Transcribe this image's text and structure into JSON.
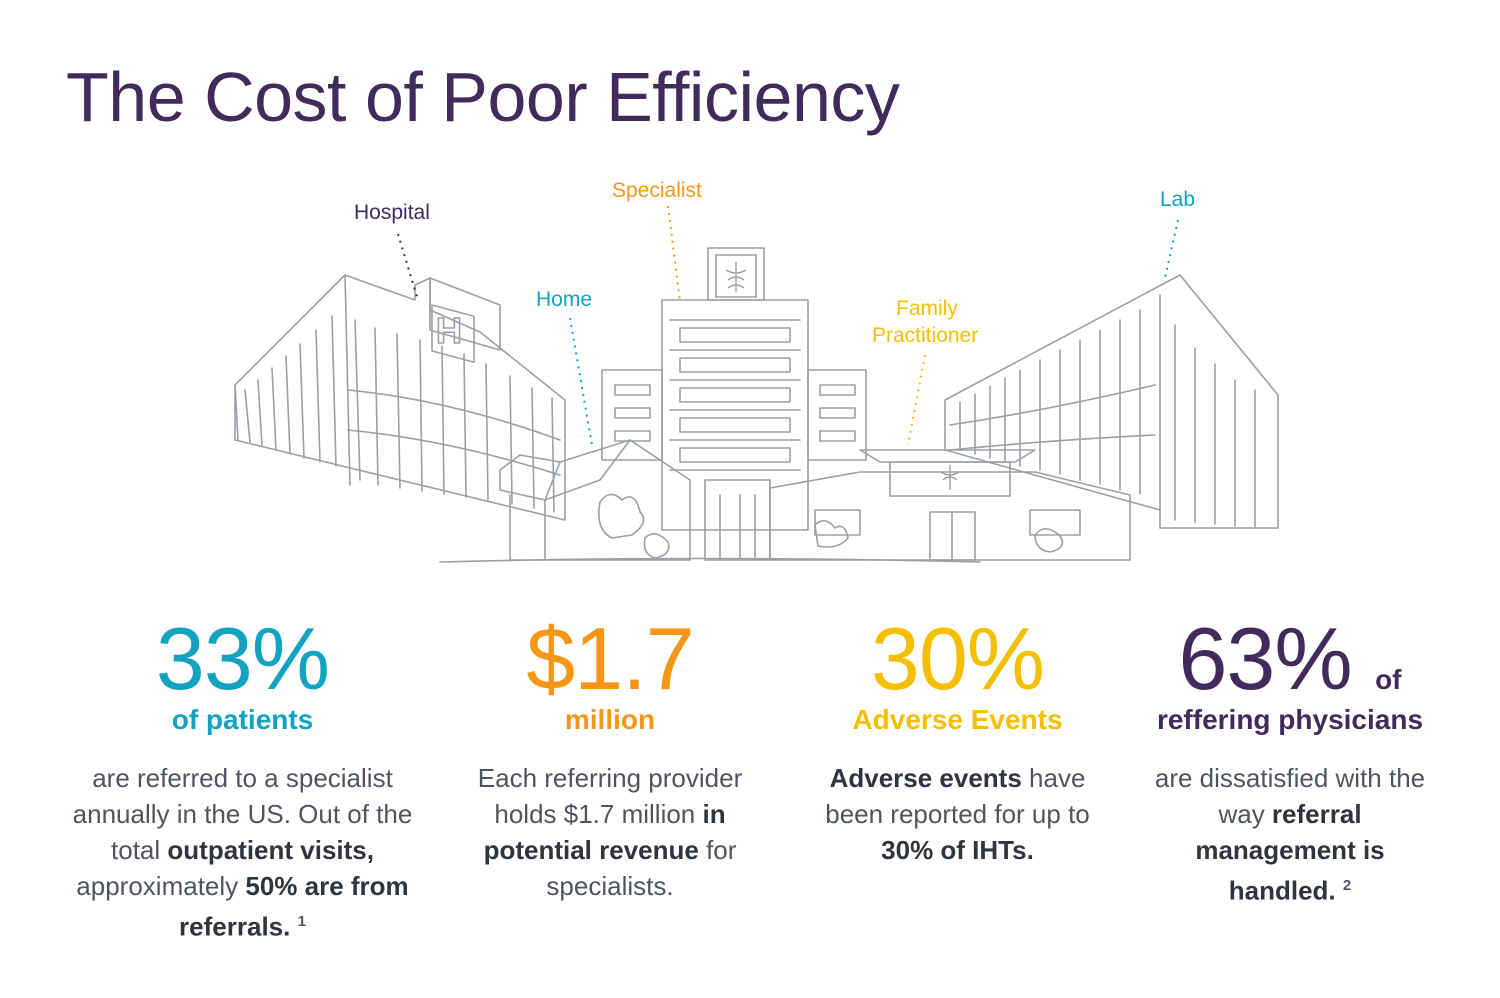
{
  "title": "The Cost of Poor Efficiency",
  "scene": {
    "labels": {
      "hospital": "Hospital",
      "specialist": "Specialist",
      "home": "Home",
      "family_1": "Family",
      "family_2": "Practitioner",
      "lab": "Lab"
    },
    "colors": {
      "hospital": "#432a5c",
      "specialist": "#f59617",
      "home": "#11a3c0",
      "family": "#f5bf00",
      "lab": "#11a3c0",
      "sketch": "#9aa0a6"
    },
    "icons": [
      "hospital-sign-icon",
      "caduceus-icon"
    ],
    "hospital_sign_letter": "H"
  },
  "stats": [
    {
      "big": "33%",
      "sub": "of patients",
      "color": "#11a3c0",
      "body": [
        {
          "t": "are referred to a specialist annually in the US. Out of the total ",
          "b": false
        },
        {
          "t": "outpatient visits,",
          "b": true
        },
        {
          "t": " approximately ",
          "b": false
        },
        {
          "t": "50% are from referrals.",
          "b": true
        }
      ],
      "footnote": "1"
    },
    {
      "big": "$1.7",
      "sub": "million",
      "color": "#f59617",
      "body": [
        {
          "t": "Each referring provider holds $1.7 million ",
          "b": false
        },
        {
          "t": "in potential revenue",
          "b": true
        },
        {
          "t": " for specialists.",
          "b": false
        }
      ]
    },
    {
      "big": "30%",
      "sub": "Adverse Events",
      "color": "#f5bf00",
      "body": [
        {
          "t": "Adverse events",
          "b": true
        },
        {
          "t": " have been reported for up to ",
          "b": false
        },
        {
          "t": "30% of IHTs.",
          "b": true
        }
      ]
    },
    {
      "big": "63%",
      "big_suffix": "of",
      "sub": "reffering physicians",
      "color": "#432a5c",
      "body": [
        {
          "t": "are dissatisfied with the way ",
          "b": false
        },
        {
          "t": "referral management is handled.",
          "b": true
        }
      ],
      "footnote": "2"
    }
  ]
}
